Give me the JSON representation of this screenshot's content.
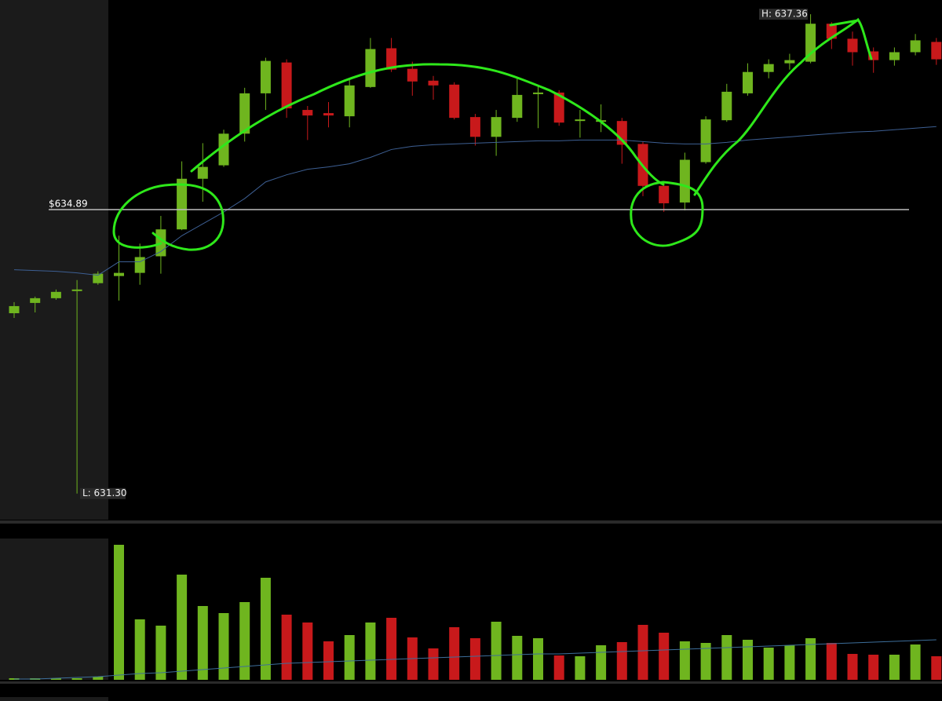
{
  "chart_data": [
    {
      "type": "candlestick",
      "up_color": "#6fb51f",
      "down_color": "#c8191b",
      "ylim": [
        630.97,
        637.54
      ],
      "open": [
        633.58,
        633.71,
        633.77,
        633.86,
        633.96,
        634.05,
        634.09,
        634.3,
        634.64,
        635.28,
        635.45,
        635.85,
        636.36,
        636.75,
        636.15,
        636.11,
        636.07,
        636.44,
        636.93,
        636.67,
        636.52,
        636.47,
        636.06,
        635.81,
        636.05,
        636.35,
        636.37,
        636.01,
        636.0,
        636.01,
        635.72,
        635.19,
        634.98,
        635.49,
        636.02,
        636.36,
        636.63,
        636.74,
        636.76,
        637.24,
        637.05,
        636.89,
        636.78,
        636.88,
        637.01
      ],
      "high": [
        633.72,
        633.79,
        633.88,
        634.0,
        634.11,
        634.56,
        634.46,
        634.81,
        635.5,
        635.73,
        635.9,
        636.43,
        636.81,
        636.79,
        636.2,
        636.25,
        636.55,
        637.06,
        637.06,
        636.76,
        636.58,
        636.5,
        636.1,
        636.15,
        636.55,
        636.47,
        636.4,
        636.15,
        636.22,
        636.05,
        635.75,
        635.23,
        635.61,
        636.07,
        636.48,
        636.74,
        636.79,
        636.86,
        637.36,
        637.26,
        637.14,
        636.94,
        636.94,
        637.11,
        637.06
      ],
      "low": [
        633.52,
        633.59,
        633.75,
        631.3,
        633.94,
        633.74,
        633.94,
        634.08,
        634.63,
        634.99,
        635.43,
        635.75,
        636.15,
        636.05,
        635.77,
        635.93,
        635.93,
        636.43,
        636.63,
        636.33,
        636.28,
        636.03,
        635.7,
        635.57,
        636.0,
        635.92,
        635.95,
        635.8,
        635.87,
        635.47,
        635.06,
        634.86,
        634.88,
        635.47,
        636.0,
        636.33,
        636.55,
        636.66,
        636.74,
        636.92,
        636.71,
        636.62,
        636.71,
        636.84,
        636.72
      ],
      "close": [
        633.67,
        633.77,
        633.85,
        633.88,
        634.08,
        634.09,
        634.29,
        634.64,
        635.28,
        635.43,
        635.85,
        636.36,
        636.77,
        636.17,
        636.08,
        636.08,
        636.46,
        636.92,
        636.66,
        636.51,
        636.46,
        636.05,
        635.81,
        636.06,
        636.34,
        636.37,
        635.99,
        636.03,
        636.02,
        635.71,
        635.19,
        634.97,
        635.52,
        636.03,
        636.38,
        636.63,
        636.73,
        636.78,
        637.24,
        637.05,
        636.88,
        636.78,
        636.88,
        637.03,
        636.79
      ],
      "ma": {
        "color": "#3d5f93",
        "values": [
          634.13,
          634.12,
          634.11,
          634.09,
          634.06,
          634.23,
          634.23,
          634.36,
          634.56,
          634.71,
          634.86,
          635.03,
          635.24,
          635.33,
          635.4,
          635.43,
          635.47,
          635.55,
          635.65,
          635.69,
          635.71,
          635.72,
          635.73,
          635.74,
          635.75,
          635.76,
          635.76,
          635.77,
          635.77,
          635.77,
          635.75,
          635.73,
          635.72,
          635.72,
          635.74,
          635.77,
          635.79,
          635.81,
          635.83,
          635.85,
          635.87,
          635.88,
          635.9,
          635.92,
          635.94
        ]
      },
      "price_line": {
        "value": 634.89,
        "label": "$634.89"
      },
      "high_label": {
        "value": 637.36,
        "label": "H: 637.36"
      },
      "low_label": {
        "value": 631.3,
        "label": "L: 631.30"
      }
    },
    {
      "type": "volume",
      "ylim": [
        0,
        180
      ],
      "values": [
        2,
        2,
        2,
        2,
        4,
        172,
        77,
        69,
        134,
        94,
        85,
        99,
        130,
        83,
        73,
        49,
        57,
        73,
        79,
        54,
        40,
        67,
        53,
        74,
        56,
        53,
        31,
        30,
        44,
        48,
        70,
        60,
        49,
        47,
        57,
        51,
        41,
        44,
        53,
        47,
        33,
        32,
        32,
        45,
        30
      ],
      "ma": {
        "color": "#3d6e9a",
        "values": [
          1,
          1,
          2,
          3,
          4,
          6,
          8,
          9,
          11,
          13,
          15,
          17,
          19,
          21,
          22,
          23,
          24,
          25,
          26,
          27,
          28,
          29,
          30,
          31,
          32,
          33,
          33,
          34,
          35,
          36,
          37,
          38,
          39,
          40,
          41,
          42,
          43,
          44,
          45,
          46,
          47,
          48,
          49,
          50,
          51
        ]
      }
    }
  ]
}
